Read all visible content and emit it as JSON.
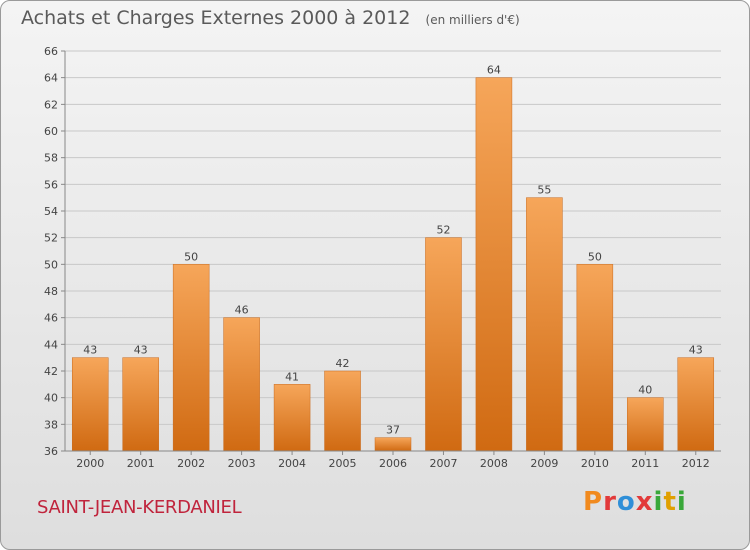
{
  "header": {
    "title": "Achats et Charges Externes 2000 à 2012",
    "unit": "(en milliers d'€)"
  },
  "footer": {
    "location": "SAINT-JEAN-KERDANIEL",
    "brand_letters": [
      "P",
      "r",
      "o",
      "x",
      "i",
      "t",
      "i"
    ],
    "brand_colors": [
      "#f18a1e",
      "#e23a3a",
      "#2f8fd8",
      "#e23a3a",
      "#3aa83a",
      "#e0a000",
      "#3aa83a"
    ]
  },
  "colors": {
    "bar_light": "#f6a65a",
    "bar_dark": "#d06a12",
    "grid": "#c8c8c8",
    "axis_text": "#444444",
    "label_text": "#444444"
  },
  "chart_data": {
    "type": "bar",
    "title": "Achats et Charges Externes 2000 à 2012",
    "subtitle": "(en milliers d'€)",
    "categories": [
      "2000",
      "2001",
      "2002",
      "2003",
      "2004",
      "2005",
      "2006",
      "2007",
      "2008",
      "2009",
      "2010",
      "2011",
      "2012"
    ],
    "values": [
      43,
      43,
      50,
      46,
      41,
      42,
      37,
      52,
      64,
      55,
      50,
      40,
      43
    ],
    "ylim": [
      36,
      66
    ],
    "yticks": [
      36,
      38,
      40,
      42,
      44,
      46,
      48,
      50,
      52,
      54,
      56,
      58,
      60,
      62,
      64,
      66
    ],
    "xlabel": "",
    "ylabel": "",
    "grid": true
  }
}
